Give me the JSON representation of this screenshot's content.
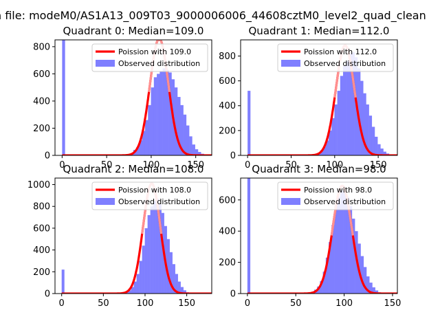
{
  "figure_title": "n file: modeM0/AS1A13_009T03_9000006006_44608cztM0_level2_quad_clean",
  "colors": {
    "hist": "#7f7fff",
    "poisson": "#ff0000",
    "poisson_fade": "#ff9090",
    "axis": "#000000",
    "legend_border": "#cccccc"
  },
  "legend_observed": "Observed distribution",
  "chart_data": [
    {
      "type": "bar",
      "title": "Quadrant 0: Median=109.0",
      "xlim": [
        -8,
        168
      ],
      "ylim": [
        0,
        850
      ],
      "xticks": [
        0,
        50,
        100,
        150
      ],
      "yticks": [
        0,
        200,
        400,
        600,
        800
      ],
      "zero_spike": 850,
      "bin_width": 3.3,
      "hist": {
        "start": 70,
        "values": [
          2,
          8,
          15,
          40,
          60,
          110,
          180,
          260,
          370,
          500,
          575,
          600,
          620,
          640,
          630,
          610,
          560,
          500,
          430,
          370,
          300,
          220,
          140,
          80,
          45,
          25,
          12,
          5
        ]
      },
      "poisson": {
        "label": "Poission with 109.0",
        "mean": 109.0,
        "peak": 860,
        "sigma": 10.4
      }
    },
    {
      "type": "bar",
      "title": "Quadrant 1: Median=112.0",
      "xlim": [
        -8,
        172
      ],
      "ylim": [
        0,
        930
      ],
      "xticks": [
        0,
        50,
        100,
        150
      ],
      "yticks": [
        0,
        200,
        400,
        600,
        800
      ],
      "zero_spike": 520,
      "bin_width": 3.3,
      "hist": {
        "start": 70,
        "values": [
          2,
          5,
          10,
          20,
          40,
          70,
          120,
          200,
          300,
          410,
          520,
          640,
          720,
          760,
          820,
          830,
          790,
          700,
          600,
          500,
          410,
          320,
          230,
          150,
          90,
          55,
          30,
          15,
          6
        ]
      },
      "poisson": {
        "label": "Poission with 112.0",
        "mean": 112.0,
        "peak": 885,
        "sigma": 10.6
      }
    },
    {
      "type": "bar",
      "title": "Quadrant 2: Median=108.0",
      "xlim": [
        -8,
        180
      ],
      "ylim": [
        0,
        1060
      ],
      "xticks": [
        0,
        50,
        100,
        150
      ],
      "yticks": [
        0,
        200,
        400,
        600,
        800,
        1000
      ],
      "zero_spike": 220,
      "bin_width": 3.3,
      "hist": {
        "start": 70,
        "values": [
          2,
          5,
          12,
          30,
          60,
          110,
          180,
          300,
          440,
          600,
          720,
          800,
          850,
          870,
          820,
          740,
          620,
          500,
          380,
          270,
          180,
          110,
          60,
          30,
          12,
          5
        ]
      },
      "poisson": {
        "label": "Poission with 108.0",
        "mean": 108.0,
        "peak": 1010,
        "sigma": 10.4
      }
    },
    {
      "type": "bar",
      "title": "Quadrant 3: Median=98.0",
      "xlim": [
        -7,
        155
      ],
      "ylim": [
        0,
        740
      ],
      "xticks": [
        0,
        50,
        100,
        150
      ],
      "yticks": [
        0,
        200,
        400,
        600
      ],
      "zero_spike": 740,
      "bin_width": 3.0,
      "hist": {
        "start": 60,
        "values": [
          3,
          6,
          12,
          25,
          45,
          80,
          140,
          230,
          330,
          440,
          560,
          620,
          660,
          650,
          620,
          560,
          480,
          400,
          320,
          240,
          170,
          110,
          70,
          40,
          20,
          8
        ]
      },
      "poisson": {
        "label": "Poission with 98.0",
        "mean": 98.0,
        "peak": 690,
        "sigma": 9.9
      }
    }
  ]
}
